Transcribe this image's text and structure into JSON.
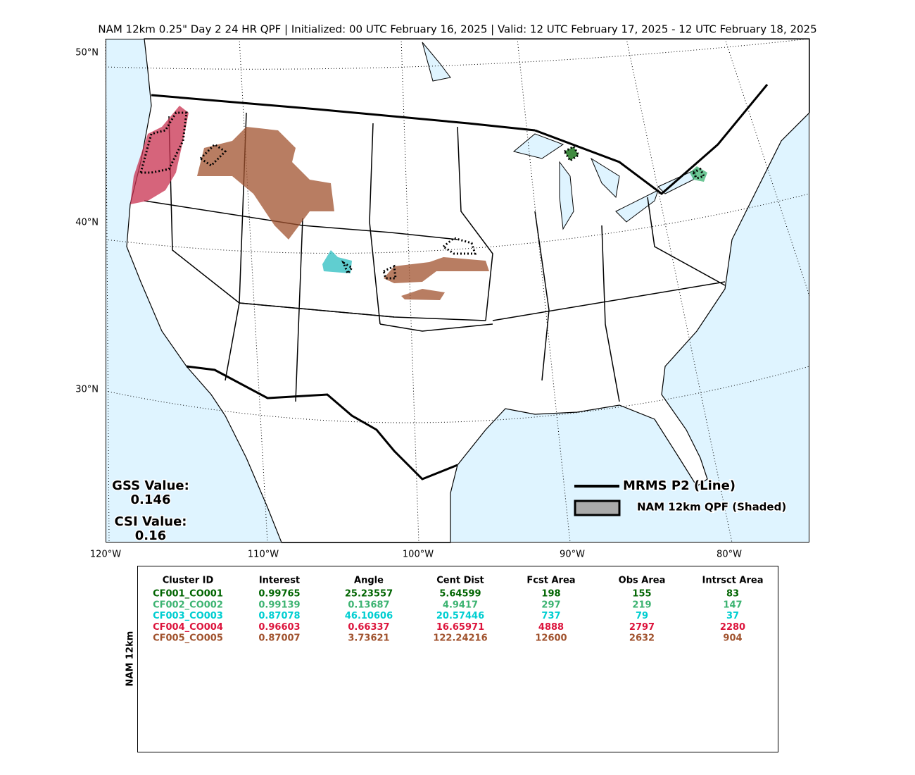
{
  "title": "NAM 12km 0.25\" Day 2 24 HR QPF | Initialized: 00 UTC February 16, 2025 | Valid: 12 UTC February 17, 2025 - 12 UTC February 18, 2025",
  "map": {
    "lat_labels": [
      "50°N",
      "40°N",
      "30°N"
    ],
    "lon_labels": [
      "120°W",
      "110°W",
      "100°W",
      "90°W",
      "80°W"
    ],
    "scores": {
      "gss_label": "GSS Value:",
      "gss_value": "0.146",
      "csi_label": "CSI Value:",
      "csi_value": "0.16"
    },
    "legend": {
      "line": "MRMS P2 (Line)",
      "shaded": "NAM 12km QPF (Shaded)"
    }
  },
  "table": {
    "side_label": "NAM 12km",
    "header": [
      "Cluster ID",
      "Interest",
      "Angle",
      "Cent Dist",
      "Fcst Area",
      "Obs Area",
      "Intrsct Area"
    ],
    "rows": [
      {
        "color": "#006400",
        "cells": [
          "CF001_CO001",
          "0.99765",
          "25.23557",
          "5.64599",
          "198",
          "155",
          "83"
        ]
      },
      {
        "color": "#3cb371",
        "cells": [
          "CF002_CO002",
          "0.99139",
          "0.13687",
          "4.9417",
          "297",
          "219",
          "147"
        ]
      },
      {
        "color": "#00ced1",
        "cells": [
          "CF003_CO003",
          "0.87078",
          "46.10606",
          "20.57446",
          "737",
          "79",
          "37"
        ]
      },
      {
        "color": "#dc143c",
        "cells": [
          "CF004_CO004",
          "0.96603",
          "0.66337",
          "16.65971",
          "4888",
          "2797",
          "2280"
        ]
      },
      {
        "color": "#a0522d",
        "cells": [
          "CF005_CO005",
          "0.87007",
          "3.73621",
          "122.24216",
          "12600",
          "2632",
          "904"
        ]
      }
    ]
  }
}
